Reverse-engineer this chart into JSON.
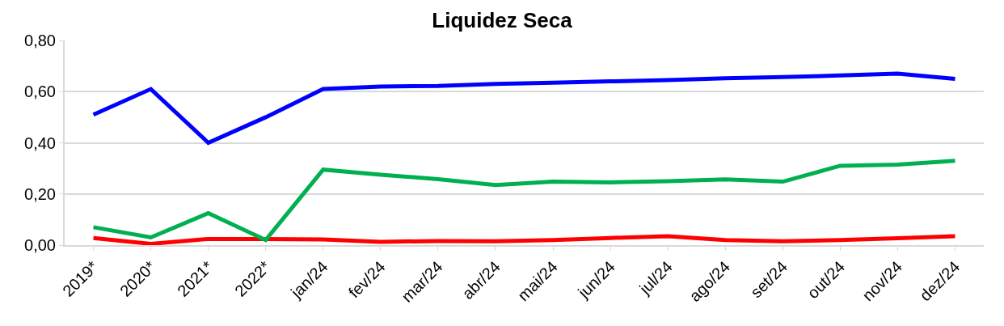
{
  "chart_data": {
    "type": "line",
    "title": "Liquidez Seca",
    "categories": [
      "2019*",
      "2020*",
      "2021*",
      "2022*",
      "jan/24",
      "fev/24",
      "mar/24",
      "abr/24",
      "mai/24",
      "jun/24",
      "jul/24",
      "ago/24",
      "set/24",
      "out/24",
      "nov/24",
      "dez/24"
    ],
    "series": [
      {
        "color": "#0000ff",
        "values": [
          0.51,
          0.61,
          0.4,
          0.5,
          0.61,
          0.62,
          0.622,
          0.63,
          0.635,
          0.64,
          0.645,
          0.652,
          0.657,
          0.663,
          0.67,
          0.65
        ]
      },
      {
        "color": "#ff0000",
        "values": [
          0.028,
          0.005,
          0.024,
          0.024,
          0.022,
          0.013,
          0.016,
          0.015,
          0.02,
          0.028,
          0.035,
          0.02,
          0.015,
          0.02,
          0.027,
          0.035
        ]
      },
      {
        "color": "#00b050",
        "values": [
          0.07,
          0.03,
          0.125,
          0.02,
          0.295,
          0.275,
          0.258,
          0.235,
          0.248,
          0.245,
          0.25,
          0.257,
          0.248,
          0.31,
          0.315,
          0.33
        ]
      }
    ],
    "ylim": [
      0,
      0.8
    ],
    "yticks": [
      {
        "value": 0,
        "label": "0,00"
      },
      {
        "value": 0.2,
        "label": "0,20"
      },
      {
        "value": 0.4,
        "label": "0,40"
      },
      {
        "value": 0.6,
        "label": "0,60"
      },
      {
        "value": 0.8,
        "label": "0,80"
      }
    ],
    "grid": "y",
    "marker": "none",
    "line_style": "solid"
  }
}
